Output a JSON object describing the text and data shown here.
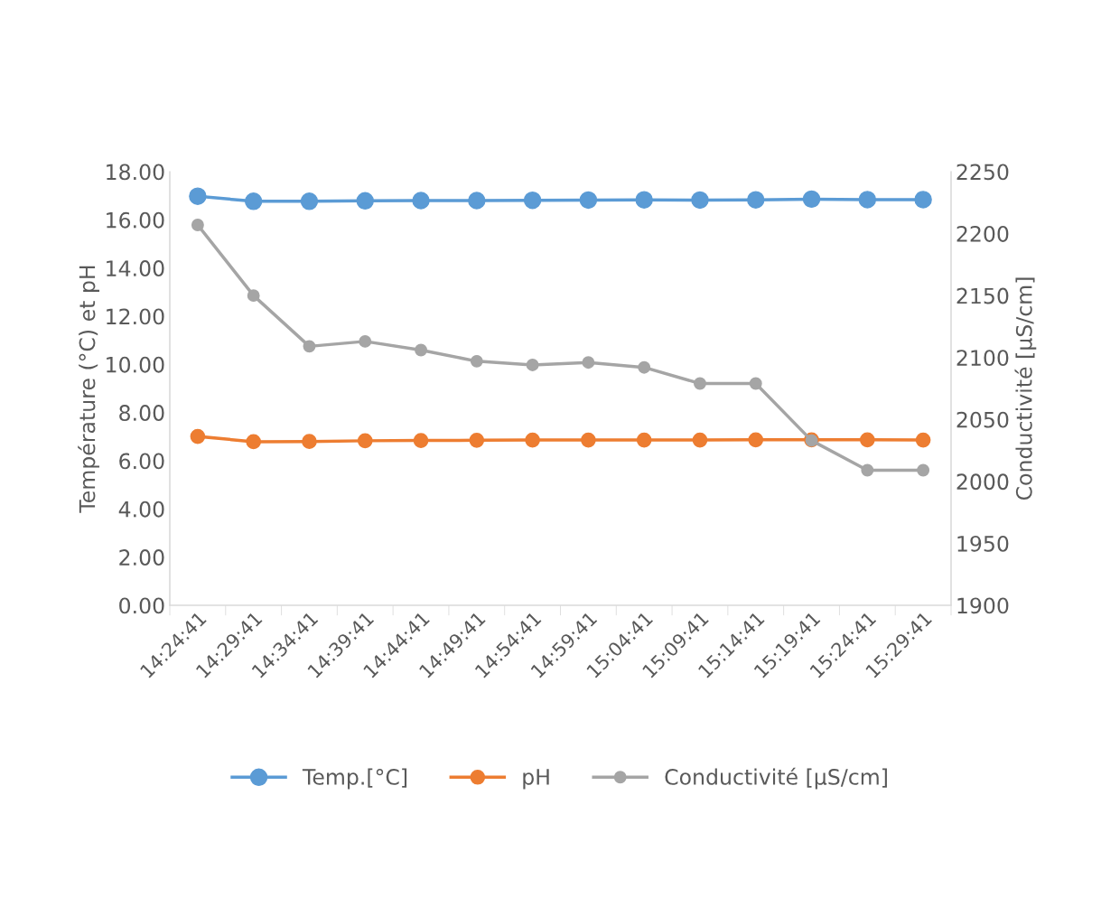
{
  "chart_data": {
    "type": "line",
    "ylabel": "Température (°C) et pH",
    "y2label": "Conductivité [µS/cm]",
    "categories": [
      "14:24:41",
      "14:29:41",
      "14:34:41",
      "14:39:41",
      "14:44:41",
      "14:49:41",
      "14:54:41",
      "14:59:41",
      "15:04:41",
      "15:09:41",
      "15:14:41",
      "15:19:41",
      "15:24:41",
      "15:29:41"
    ],
    "series": [
      {
        "name": "Temp.[°C]",
        "color": "#5b9bd5",
        "values": [
          16.98,
          16.77,
          16.77,
          16.79,
          16.8,
          16.8,
          16.81,
          16.82,
          16.83,
          16.82,
          16.83,
          16.86,
          16.84,
          16.84
        ]
      },
      {
        "name": "pH",
        "color": "#ed7d31",
        "values": [
          7.01,
          6.79,
          6.8,
          6.83,
          6.84,
          6.85,
          6.86,
          6.86,
          6.86,
          6.86,
          6.87,
          6.87,
          6.87,
          6.86
        ]
      },
      {
        "name": "Conductivité [µS/cm]",
        "color": "#a5a5a5",
        "axis": "y2",
        "values": [
          2207,
          2150,
          2109,
          2113,
          2106,
          2097,
          2094,
          2096,
          2092,
          2079,
          2079,
          2033,
          2009,
          2009
        ]
      }
    ],
    "ylim": [
      0,
      18
    ],
    "yticks": [
      {
        "value": 0,
        "label": "0.00"
      },
      {
        "value": 2,
        "label": "2.00"
      },
      {
        "value": 4,
        "label": "4.00"
      },
      {
        "value": 6,
        "label": "6.00"
      },
      {
        "value": 8,
        "label": "8.00"
      },
      {
        "value": 10,
        "label": "10.00"
      },
      {
        "value": 12,
        "label": "12.00"
      },
      {
        "value": 14,
        "label": "14.00"
      },
      {
        "value": 16,
        "label": "16.00"
      },
      {
        "value": 18,
        "label": "18.00"
      }
    ],
    "y2lim": [
      1900,
      2250
    ],
    "y2ticks": [
      1900,
      1950,
      2000,
      2050,
      2100,
      2150,
      2200,
      2250
    ],
    "marker": "circle",
    "line_style": "solid",
    "grid": false,
    "legend": "bottom"
  }
}
